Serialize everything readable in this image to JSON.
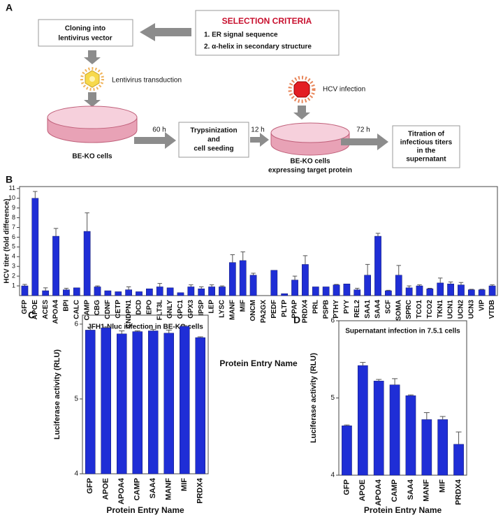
{
  "panel_a": {
    "label": "A",
    "criteria_title": "SELECTION CRITERIA",
    "criteria": [
      "1. ER signal sequence",
      "2. α-helix in secondary structure"
    ],
    "cloning": [
      "Cloning into",
      "lentivirus vector"
    ],
    "lentivirus": "Lentivirus transduction",
    "hcv": "HCV infection",
    "time_1": "60 h",
    "time_2": "12 h",
    "time_3": "72 h",
    "trypsin": [
      "Trypsinization",
      "and",
      "cell seeding"
    ],
    "cells_1": "BE-KO cells",
    "cells_2": [
      "BE-KO cells",
      "expressing target protein"
    ],
    "titration": [
      "Titration of",
      "infectious titers",
      "in the",
      "supernatant"
    ]
  },
  "chart_data": [
    {
      "type": "bar",
      "panel": "B",
      "y_label": "HCV titer (fold difference)",
      "x_label": "Protein Entry Name",
      "color": "#1f2ed6",
      "categories": [
        "GFP",
        "APOE",
        "ACES",
        "APOA4",
        "BPI",
        "CALC",
        "CAMP",
        "CBG",
        "CDNF",
        "CETP",
        "CNDPN1",
        "DCD",
        "EPO",
        "FLT3L",
        "GNLY",
        "GPC1",
        "GPX3",
        "IPSP",
        "LEP",
        "LYSC",
        "MANF",
        "MIF",
        "ONCM",
        "PA2GX",
        "PEDF",
        "PLTP",
        "PPAP",
        "PRDX4",
        "PRL",
        "PSPB",
        "PTHY",
        "PYY",
        "REL2",
        "SAA1",
        "SAA4",
        "SCF",
        "SOMA",
        "SPRC",
        "TCO1",
        "TCO2",
        "TKN1",
        "UCN1",
        "UCN2",
        "UCN3",
        "VIP",
        "VTDB"
      ],
      "values": [
        1.0,
        10.0,
        0.5,
        6.1,
        0.6,
        0.8,
        6.6,
        0.9,
        0.5,
        0.4,
        0.6,
        0.4,
        0.7,
        0.9,
        0.8,
        0.3,
        0.9,
        0.7,
        0.9,
        0.9,
        3.4,
        3.6,
        2.1,
        0,
        2.6,
        0.2,
        1.6,
        3.2,
        0.9,
        0.9,
        1.1,
        1.2,
        0.6,
        2.1,
        6.1,
        0.5,
        2.1,
        0.8,
        1.0,
        0.7,
        1.3,
        1.2,
        1.1,
        0.6,
        0.6,
        1.0
      ],
      "errors": [
        0.15,
        0.7,
        0.3,
        0.8,
        0.15,
        0,
        1.9,
        0.1,
        0,
        0,
        0.3,
        0,
        0,
        0.35,
        0,
        0,
        0.2,
        0.2,
        0.2,
        0.1,
        0.8,
        0.9,
        0.2,
        0,
        0,
        0,
        0.4,
        0.9,
        0,
        0,
        0.05,
        0,
        0.15,
        1.1,
        0.3,
        0.05,
        1.0,
        0.2,
        0.1,
        0.05,
        0.5,
        0.2,
        0.25,
        0.05,
        0.05,
        0.1
      ],
      "ylim": [
        0,
        11.2
      ],
      "yticks": [
        1,
        2,
        3,
        4,
        5,
        6,
        7,
        8,
        9,
        10,
        11
      ]
    },
    {
      "type": "bar",
      "panel": "C",
      "title": "JFH1-Nluc infection in BE-KO cells",
      "y_label": "Luciferase activity (RLU)",
      "x_label": "Protein Entry Name",
      "color": "#1f2ed6",
      "categories": [
        "GFP",
        "APOE",
        "APOA4",
        "CAMP",
        "SAA4",
        "MANF",
        "MIF",
        "PRDX4"
      ],
      "values": [
        5.92,
        5.95,
        5.87,
        5.9,
        5.91,
        5.88,
        5.97,
        5.82
      ],
      "errors": [
        0.04,
        0.01,
        0.04,
        0.01,
        0.02,
        0.04,
        0.01,
        0.01
      ],
      "ylim": [
        4,
        6.12
      ],
      "yticks": [
        4,
        5,
        6
      ]
    },
    {
      "type": "bar",
      "panel": "D",
      "title": "Supernatant infection in 7.5.1 cells",
      "y_label": "Luciferase activity (RLU)",
      "x_label": "Protein Entry Name",
      "color": "#1f2ed6",
      "categories": [
        "GFP",
        "APOE",
        "APOA4",
        "CAMP",
        "SAA4",
        "MANF",
        "MIF",
        "PRDX4"
      ],
      "values": [
        4.64,
        5.42,
        5.22,
        5.17,
        5.03,
        4.72,
        4.72,
        4.4
      ],
      "errors": [
        0.01,
        0.04,
        0.02,
        0.08,
        0.01,
        0.09,
        0.04,
        0.16
      ],
      "ylim": [
        4,
        6
      ],
      "yticks": [
        4,
        5,
        6
      ]
    }
  ]
}
